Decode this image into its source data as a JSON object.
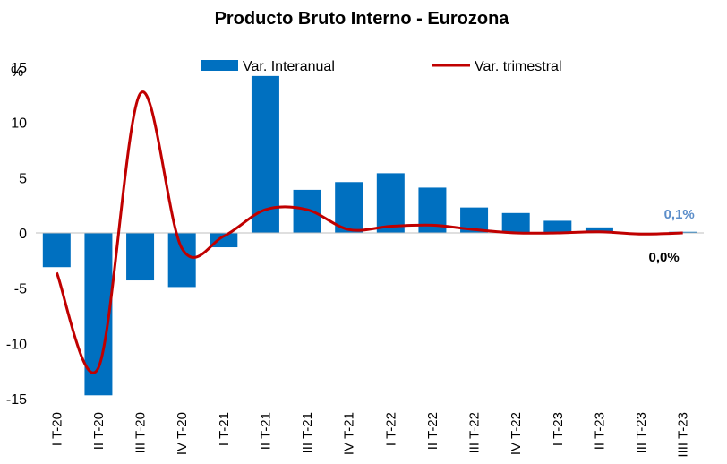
{
  "chart_data": {
    "type": "bar",
    "title": "Producto Bruto Interno - Eurozona",
    "ylabel": "%",
    "ylim": [
      -15,
      15
    ],
    "yticks": [
      -15,
      -10,
      -5,
      0,
      5,
      10,
      15
    ],
    "ytick_labels": [
      "-15",
      "-10",
      "-5",
      "0",
      "5",
      "10",
      "15"
    ],
    "categories": [
      "I T-20",
      "II T-20",
      "III T-20",
      "IV T-20",
      "I T-21",
      "II T-21",
      "III T-21",
      "IV T-21",
      "I T-22",
      "II T-22",
      "III T-22",
      "IV T-22",
      "I T-23",
      "II T-23",
      "III T-23",
      "IIII T-23"
    ],
    "series": [
      {
        "name": "Var. Interanual",
        "type": "bar",
        "color": "#0070C0",
        "values": [
          -3.1,
          -14.7,
          -4.3,
          -4.9,
          -1.3,
          14.2,
          3.9,
          4.6,
          5.4,
          4.1,
          2.3,
          1.8,
          1.1,
          0.5,
          0.0,
          0.1
        ]
      },
      {
        "name": "Var. trimestral",
        "type": "line",
        "color": "#C00000",
        "values": [
          -3.6,
          -12.2,
          12.6,
          -1.4,
          -0.3,
          2.1,
          2.1,
          0.3,
          0.6,
          0.7,
          0.3,
          0.0,
          0.0,
          0.1,
          -0.1,
          0.0
        ]
      }
    ],
    "annotations": [
      {
        "text": "0,1%",
        "series": "Var. Interanual",
        "color": "#5B8DC9"
      },
      {
        "text": "0,0%",
        "series": "Var. trimestral",
        "color": "#000000"
      }
    ],
    "legend": "top",
    "grid": false
  }
}
